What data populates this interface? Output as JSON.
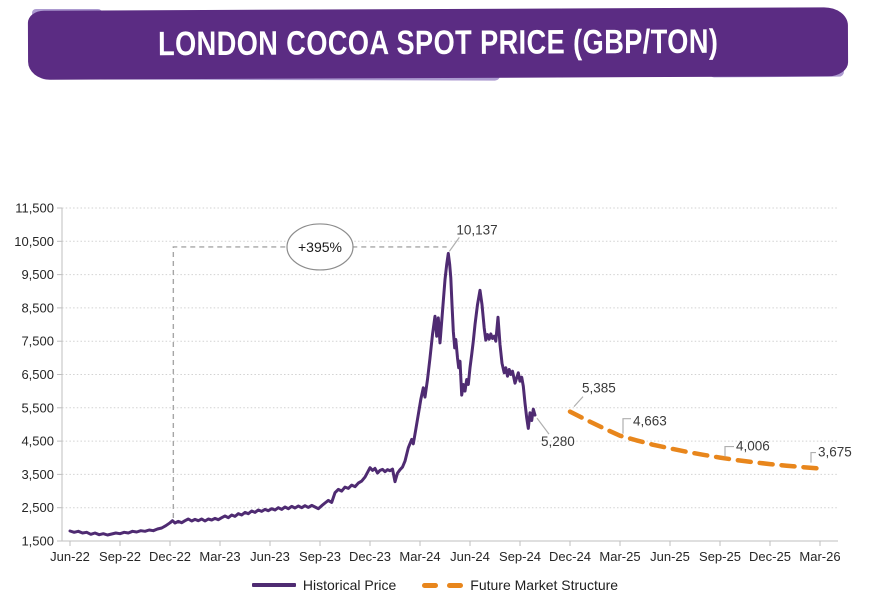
{
  "banner": {
    "title": "LONDON COCOA SPOT PRICE (GBP/TON)"
  },
  "colors": {
    "banner_purple": "#5B2C83",
    "banner_fringe": "#AC9AD0",
    "historical_line": "#4F2B72",
    "forecast_line": "#E8861C",
    "gridline": "#D2D2D2",
    "axis": "#BFBFBF",
    "annotation_gray": "#A6A6A6",
    "callout_gray": "#AFAFAF",
    "label_text": "#3A3A3A",
    "tick_text": "#262626"
  },
  "chart_data": {
    "type": "line",
    "title": "LONDON COCOA SPOT PRICE (GBP/TON)",
    "xlabel": "",
    "ylabel": "",
    "ylim": [
      1500,
      11500
    ],
    "grid": "horizontal-dotted",
    "legend_position": "bottom",
    "y_tick_values": [
      1500,
      2500,
      3500,
      4500,
      5500,
      6500,
      7500,
      8500,
      9500,
      10500,
      11500
    ],
    "y_tick_labels": [
      "1,500",
      "2,500",
      "3,500",
      "4,500",
      "5,500",
      "6,500",
      "7,500",
      "8,500",
      "9,500",
      "10,500",
      "11,500"
    ],
    "x_tick_labels": [
      "Jun-22",
      "Sep-22",
      "Dec-22",
      "Mar-23",
      "Jun-23",
      "Sep-23",
      "Dec-23",
      "Mar-24",
      "Jun-24",
      "Sep-24",
      "Dec-24",
      "Mar-25",
      "Jun-25",
      "Sep-25",
      "Dec-25",
      "Mar-26"
    ],
    "x_unit": "months-since-Jun-22",
    "series": [
      {
        "name": "Historical Price",
        "style": "solid",
        "color": "#4F2B72",
        "points": [
          [
            0,
            1800
          ],
          [
            0.25,
            1760
          ],
          [
            0.5,
            1790
          ],
          [
            0.75,
            1740
          ],
          [
            1.0,
            1760
          ],
          [
            1.25,
            1700
          ],
          [
            1.5,
            1740
          ],
          [
            1.75,
            1690
          ],
          [
            2.0,
            1720
          ],
          [
            2.25,
            1680
          ],
          [
            2.5,
            1710
          ],
          [
            2.75,
            1740
          ],
          [
            3.0,
            1720
          ],
          [
            3.25,
            1760
          ],
          [
            3.5,
            1740
          ],
          [
            3.75,
            1790
          ],
          [
            4.0,
            1770
          ],
          [
            4.25,
            1810
          ],
          [
            4.5,
            1790
          ],
          [
            4.75,
            1830
          ],
          [
            5.0,
            1810
          ],
          [
            5.25,
            1860
          ],
          [
            5.5,
            1890
          ],
          [
            5.75,
            1960
          ],
          [
            6.0,
            2048
          ],
          [
            6.15,
            2110
          ],
          [
            6.3,
            2040
          ],
          [
            6.5,
            2090
          ],
          [
            6.7,
            2050
          ],
          [
            6.9,
            2110
          ],
          [
            7.1,
            2160
          ],
          [
            7.3,
            2100
          ],
          [
            7.5,
            2150
          ],
          [
            7.7,
            2110
          ],
          [
            7.9,
            2160
          ],
          [
            8.1,
            2100
          ],
          [
            8.3,
            2160
          ],
          [
            8.5,
            2130
          ],
          [
            8.7,
            2180
          ],
          [
            8.9,
            2140
          ],
          [
            9.1,
            2200
          ],
          [
            9.3,
            2250
          ],
          [
            9.5,
            2200
          ],
          [
            9.7,
            2280
          ],
          [
            9.9,
            2240
          ],
          [
            10.1,
            2320
          ],
          [
            10.3,
            2280
          ],
          [
            10.5,
            2360
          ],
          [
            10.7,
            2320
          ],
          [
            10.9,
            2400
          ],
          [
            11.1,
            2360
          ],
          [
            11.3,
            2430
          ],
          [
            11.5,
            2390
          ],
          [
            11.7,
            2450
          ],
          [
            11.9,
            2410
          ],
          [
            12.1,
            2470
          ],
          [
            12.3,
            2430
          ],
          [
            12.5,
            2500
          ],
          [
            12.7,
            2450
          ],
          [
            12.9,
            2520
          ],
          [
            13.1,
            2470
          ],
          [
            13.3,
            2540
          ],
          [
            13.5,
            2490
          ],
          [
            13.7,
            2550
          ],
          [
            13.9,
            2500
          ],
          [
            14.1,
            2560
          ],
          [
            14.3,
            2510
          ],
          [
            14.5,
            2570
          ],
          [
            14.7,
            2520
          ],
          [
            14.9,
            2470
          ],
          [
            15.1,
            2560
          ],
          [
            15.3,
            2640
          ],
          [
            15.5,
            2720
          ],
          [
            15.7,
            2660
          ],
          [
            15.9,
            2950
          ],
          [
            16.1,
            3050
          ],
          [
            16.3,
            3000
          ],
          [
            16.5,
            3120
          ],
          [
            16.7,
            3080
          ],
          [
            16.9,
            3180
          ],
          [
            17.1,
            3130
          ],
          [
            17.3,
            3240
          ],
          [
            17.5,
            3300
          ],
          [
            17.7,
            3420
          ],
          [
            17.85,
            3560
          ],
          [
            18.0,
            3700
          ],
          [
            18.15,
            3620
          ],
          [
            18.3,
            3680
          ],
          [
            18.45,
            3540
          ],
          [
            18.6,
            3620
          ],
          [
            18.75,
            3650
          ],
          [
            18.9,
            3580
          ],
          [
            19.05,
            3640
          ],
          [
            19.2,
            3610
          ],
          [
            19.35,
            3660
          ],
          [
            19.5,
            3280
          ],
          [
            19.65,
            3540
          ],
          [
            19.8,
            3640
          ],
          [
            19.95,
            3720
          ],
          [
            20.1,
            3900
          ],
          [
            20.3,
            4300
          ],
          [
            20.5,
            4550
          ],
          [
            20.6,
            4420
          ],
          [
            20.75,
            4850
          ],
          [
            20.9,
            5300
          ],
          [
            21.05,
            5750
          ],
          [
            21.2,
            6100
          ],
          [
            21.3,
            5820
          ],
          [
            21.45,
            6350
          ],
          [
            21.6,
            7000
          ],
          [
            21.75,
            7700
          ],
          [
            21.9,
            8250
          ],
          [
            22.0,
            7650
          ],
          [
            22.1,
            8200
          ],
          [
            22.2,
            7450
          ],
          [
            22.35,
            8400
          ],
          [
            22.5,
            9350
          ],
          [
            22.6,
            9800
          ],
          [
            22.7,
            10137
          ],
          [
            22.78,
            9800
          ],
          [
            22.85,
            9400
          ],
          [
            22.92,
            8600
          ],
          [
            23.0,
            7800
          ],
          [
            23.08,
            7300
          ],
          [
            23.15,
            7550
          ],
          [
            23.25,
            7000
          ],
          [
            23.32,
            6700
          ],
          [
            23.4,
            6900
          ],
          [
            23.5,
            5880
          ],
          [
            23.6,
            6200
          ],
          [
            23.7,
            6000
          ],
          [
            23.8,
            6350
          ],
          [
            23.9,
            6200
          ],
          [
            24.0,
            6700
          ],
          [
            24.1,
            7100
          ],
          [
            24.2,
            7500
          ],
          [
            24.3,
            8000
          ],
          [
            24.45,
            8600
          ],
          [
            24.6,
            9030
          ],
          [
            24.72,
            8600
          ],
          [
            24.85,
            7900
          ],
          [
            24.95,
            7530
          ],
          [
            25.05,
            7700
          ],
          [
            25.15,
            7560
          ],
          [
            25.25,
            7720
          ],
          [
            25.35,
            7580
          ],
          [
            25.45,
            7650
          ],
          [
            25.55,
            7500
          ],
          [
            25.68,
            8220
          ],
          [
            25.8,
            7400
          ],
          [
            25.92,
            6840
          ],
          [
            26.05,
            6550
          ],
          [
            26.15,
            6700
          ],
          [
            26.25,
            6450
          ],
          [
            26.35,
            6650
          ],
          [
            26.45,
            6500
          ],
          [
            26.55,
            6600
          ],
          [
            26.7,
            6240
          ],
          [
            26.8,
            6400
          ],
          [
            26.9,
            6550
          ],
          [
            27.0,
            6300
          ],
          [
            27.1,
            6420
          ],
          [
            27.2,
            6150
          ],
          [
            27.3,
            5640
          ],
          [
            27.4,
            5200
          ],
          [
            27.5,
            4880
          ],
          [
            27.6,
            5350
          ],
          [
            27.7,
            5120
          ],
          [
            27.8,
            5460
          ],
          [
            27.9,
            5280
          ]
        ]
      },
      {
        "name": "Future Market Structure",
        "style": "dashed",
        "color": "#E8861C",
        "points": [
          [
            30,
            5385
          ],
          [
            31,
            5130
          ],
          [
            32,
            4890
          ],
          [
            33,
            4663
          ],
          [
            34,
            4520
          ],
          [
            35,
            4390
          ],
          [
            36,
            4280
          ],
          [
            37,
            4180
          ],
          [
            38,
            4090
          ],
          [
            39,
            4006
          ],
          [
            40,
            3930
          ],
          [
            41,
            3865
          ],
          [
            42,
            3810
          ],
          [
            43,
            3760
          ],
          [
            44,
            3715
          ],
          [
            45,
            3675
          ]
        ]
      }
    ],
    "annotations": {
      "pct_change": {
        "text": "+395%",
        "ellipse_center_month": 15,
        "line_value": 10330,
        "from_month": 6.2,
        "base_value": 2190,
        "to_month": 22.6
      },
      "peak_label": {
        "text": "10,137",
        "month": 22.7,
        "value": 10137
      },
      "hist_end_label": {
        "text": "5,280",
        "month": 27.9,
        "value": 5280
      },
      "forecast_labels": [
        {
          "text": "5,385",
          "month": 30,
          "value": 5385
        },
        {
          "text": "4,663",
          "month": 33,
          "value": 4663
        },
        {
          "text": "4,006",
          "month": 39,
          "value": 4006
        },
        {
          "text": "3,675",
          "month": 45,
          "value": 3675
        }
      ]
    }
  }
}
